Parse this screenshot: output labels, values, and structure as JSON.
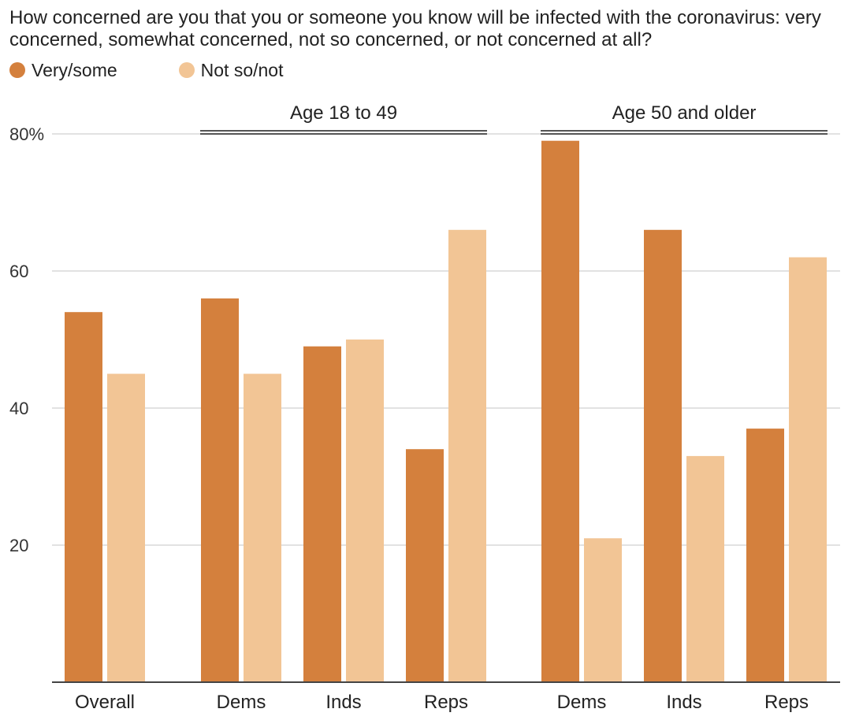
{
  "header": {
    "question": "How concerned are you that you or someone you know will be infected with the coronavirus: very concerned, somewhat concerned, not so concerned, or not concerned at all?"
  },
  "legend": [
    {
      "label": "Very/some",
      "color": "#d4803d"
    },
    {
      "label": "Not so/not",
      "color": "#f2c595"
    }
  ],
  "chart_data": {
    "type": "bar",
    "categories": [
      "Overall",
      "Dems",
      "Inds",
      "Reps",
      "Dems",
      "Inds",
      "Reps"
    ],
    "groups": [
      {
        "label": "",
        "categories": [
          0
        ]
      },
      {
        "label": "Age 18 to 49",
        "categories": [
          1,
          2,
          3
        ]
      },
      {
        "label": "Age 50 and older",
        "categories": [
          4,
          5,
          6
        ]
      }
    ],
    "series": [
      {
        "name": "Very/some",
        "color": "#d4803d",
        "values": [
          54,
          56,
          49,
          34,
          79,
          66,
          37
        ]
      },
      {
        "name": "Not so/not",
        "color": "#f2c595",
        "values": [
          45,
          45,
          50,
          66,
          21,
          33,
          62
        ]
      }
    ],
    "ylim": [
      0,
      80
    ],
    "yticks": [
      20,
      40,
      60,
      80
    ],
    "ytick_labels": [
      "20",
      "40",
      "60",
      "80%"
    ],
    "grid": true,
    "legend_position": "top-left"
  }
}
